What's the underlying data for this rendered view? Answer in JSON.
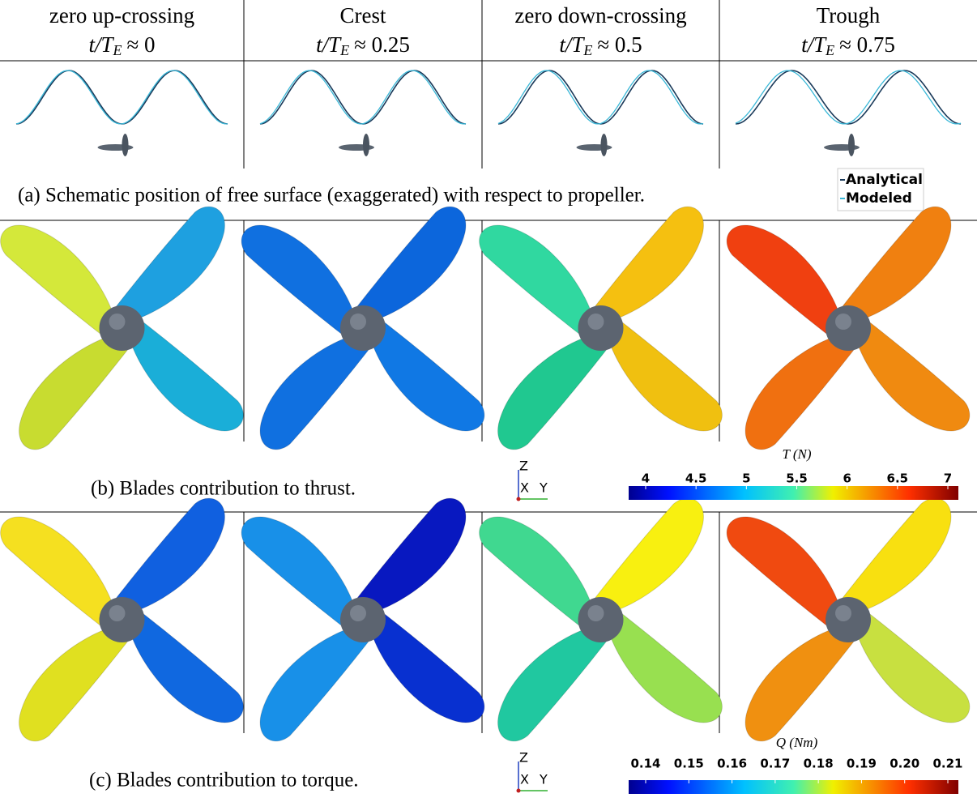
{
  "columns": [
    {
      "name": "zero up-crossing",
      "time": {
        "prefix": "t/T",
        "sub": "E",
        "suffix": "≈ 0"
      }
    },
    {
      "name": "Crest",
      "time": {
        "prefix": "t/T",
        "sub": "E",
        "suffix": "≈ 0.25"
      }
    },
    {
      "name": "zero down-crossing",
      "time": {
        "prefix": "t/T",
        "sub": "E",
        "suffix": "≈ 0.5"
      }
    },
    {
      "name": "Trough",
      "time": {
        "prefix": "t/T",
        "sub": "E",
        "suffix": "≈ 0.75"
      }
    }
  ],
  "legend": [
    "Analytical",
    "Modeled"
  ],
  "captions": [
    "(a) Schematic position of free surface (exaggerated) with respect to propeller.",
    "(b) Blades contribution to thrust.",
    "(c) Blades contribution to torque."
  ],
  "triad": {
    "z": "Z",
    "x": "X",
    "y": "Y"
  },
  "colorbars": [
    {
      "title": "T (N)",
      "lim": [
        4,
        7
      ],
      "ticks": [
        4,
        4.5,
        5,
        5.5,
        6,
        6.5,
        7
      ]
    },
    {
      "title": "Q (Nm)",
      "lim": [
        0.14,
        0.21
      ],
      "ticks": [
        0.14,
        0.15,
        0.16,
        0.17,
        0.18,
        0.19,
        {
          "value": 0.2,
          "label": "0.20"
        },
        0.21
      ]
    }
  ]
}
